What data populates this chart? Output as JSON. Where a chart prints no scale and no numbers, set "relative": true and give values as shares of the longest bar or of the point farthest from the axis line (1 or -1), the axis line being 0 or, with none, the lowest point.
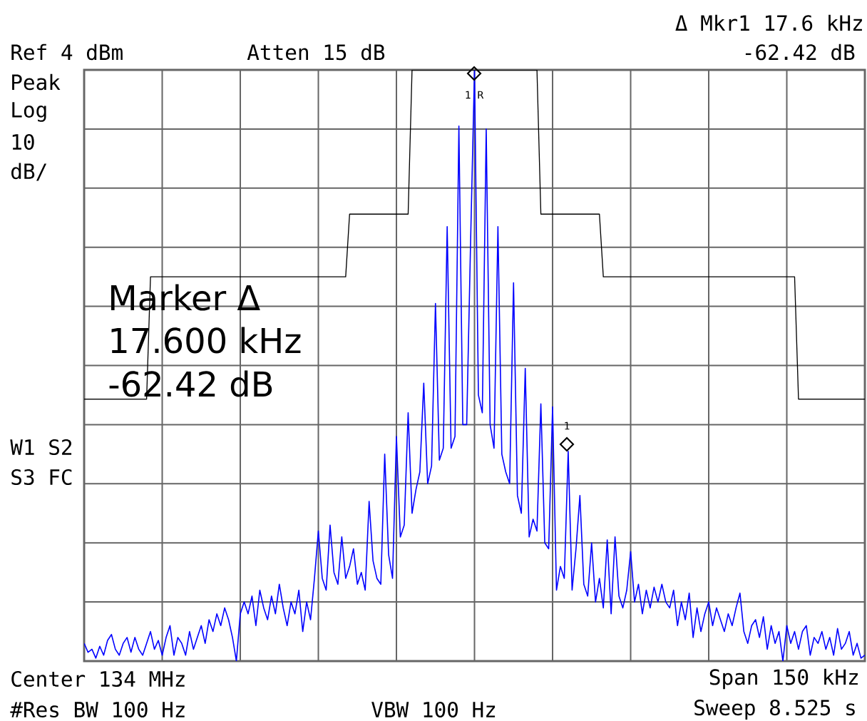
{
  "chart_data": {
    "type": "line",
    "relative": true,
    "grid": true,
    "categories": [
      null,
      null,
      null,
      null,
      null,
      null,
      null,
      null,
      null,
      null,
      null,
      null,
      null,
      null,
      null,
      null,
      null,
      null,
      null,
      null,
      null,
      null,
      null,
      null,
      null,
      null,
      null,
      null,
      null,
      null,
      null,
      null,
      null,
      null,
      null,
      null,
      null,
      null,
      null,
      null,
      null,
      null,
      null,
      null,
      null,
      null,
      null,
      null,
      null,
      null,
      null,
      null,
      null,
      null,
      null,
      null,
      null,
      null,
      null,
      null,
      null,
      null,
      null,
      null,
      null,
      null,
      null,
      null,
      null,
      null,
      null,
      null,
      null,
      null,
      null,
      null,
      null,
      null,
      null,
      null,
      null,
      null,
      null,
      null,
      null,
      null,
      null,
      null,
      null,
      null,
      null,
      null,
      null,
      null,
      null,
      null,
      null,
      null,
      null,
      null,
      null,
      null,
      null,
      null,
      null,
      null,
      null,
      null,
      null,
      null,
      null,
      null,
      null,
      null,
      null,
      null,
      null,
      null,
      null,
      null,
      null,
      null,
      null,
      null,
      null,
      null,
      null,
      null,
      null,
      null,
      null,
      null,
      null,
      null,
      null,
      null,
      null,
      null,
      null,
      null,
      null,
      null,
      null,
      null,
      null,
      null,
      null,
      null,
      null,
      null,
      null,
      null,
      null,
      null,
      null,
      null,
      null,
      null,
      null,
      null,
      null,
      null,
      null,
      null,
      null,
      null,
      null,
      null,
      null,
      null,
      null,
      null,
      null,
      null,
      null,
      null,
      null,
      null,
      null,
      null,
      null,
      null,
      null,
      null,
      null,
      null,
      null,
      null,
      null,
      null,
      null,
      null,
      null,
      null,
      null,
      null,
      null,
      null,
      null,
      null,
      null
    ],
    "series": [
      {
        "color": "#0000ff",
        "values": [
          0.03,
          0.015,
          0.02,
          0.005,
          0.025,
          0.01,
          0.035,
          0.045,
          0.02,
          0.01,
          0.03,
          0.04,
          0.015,
          0.04,
          0.02,
          0.01,
          0.03,
          0.05,
          0.02,
          0.035,
          0.01,
          0.04,
          0.06,
          0.01,
          0.04,
          0.03,
          0.01,
          0.05,
          0.02,
          0.04,
          0.06,
          0.03,
          0.07,
          0.05,
          0.08,
          0.06,
          0.09,
          0.07,
          0.04,
          0.0,
          0.08,
          0.1,
          0.08,
          0.11,
          0.06,
          0.12,
          0.09,
          0.07,
          0.11,
          0.08,
          0.13,
          0.09,
          0.06,
          0.1,
          0.08,
          0.12,
          0.05,
          0.1,
          0.07,
          0.14,
          0.22,
          0.14,
          0.12,
          0.23,
          0.15,
          0.13,
          0.21,
          0.14,
          0.16,
          0.19,
          0.13,
          0.15,
          0.12,
          0.27,
          0.17,
          0.14,
          0.13,
          0.35,
          0.18,
          0.14,
          0.38,
          0.21,
          0.23,
          0.42,
          0.25,
          0.29,
          0.32,
          0.47,
          0.3,
          0.33,
          0.605,
          0.34,
          0.36,
          0.735,
          0.36,
          0.38,
          0.905,
          0.4,
          0.4,
          0.71,
          1.0,
          0.45,
          0.42,
          0.9,
          0.4,
          0.36,
          0.735,
          0.35,
          0.32,
          0.3,
          0.64,
          0.28,
          0.25,
          0.495,
          0.21,
          0.24,
          0.22,
          0.435,
          0.2,
          0.19,
          0.43,
          0.12,
          0.16,
          0.14,
          0.355,
          0.12,
          0.19,
          0.28,
          0.13,
          0.11,
          0.2,
          0.1,
          0.14,
          0.09,
          0.205,
          0.08,
          0.21,
          0.11,
          0.09,
          0.12,
          0.185,
          0.1,
          0.13,
          0.08,
          0.12,
          0.09,
          0.125,
          0.1,
          0.13,
          0.1,
          0.09,
          0.12,
          0.06,
          0.1,
          0.07,
          0.115,
          0.04,
          0.09,
          0.05,
          0.08,
          0.1,
          0.06,
          0.09,
          0.07,
          0.05,
          0.08,
          0.06,
          0.09,
          0.115,
          0.05,
          0.03,
          0.06,
          0.07,
          0.04,
          0.075,
          0.02,
          0.06,
          0.03,
          0.05,
          0.0,
          0.06,
          0.03,
          0.05,
          0.02,
          0.05,
          0.06,
          0.01,
          0.04,
          0.03,
          0.05,
          0.02,
          0.04,
          0.01,
          0.055,
          0.02,
          0.03,
          0.05,
          0.01,
          0.03,
          0.005,
          0.01
        ]
      },
      {
        "color": "#000000",
        "values": [
          0.443,
          0.443,
          0.443,
          0.443,
          0.443,
          0.443,
          0.443,
          0.443,
          0.443,
          0.443,
          0.443,
          0.443,
          0.443,
          0.443,
          0.443,
          0.443,
          0.443,
          0.65,
          0.65,
          0.65,
          0.65,
          0.65,
          0.65,
          0.65,
          0.65,
          0.65,
          0.65,
          0.65,
          0.65,
          0.65,
          0.65,
          0.65,
          0.65,
          0.65,
          0.65,
          0.65,
          0.65,
          0.65,
          0.65,
          0.65,
          0.65,
          0.65,
          0.65,
          0.65,
          0.65,
          0.65,
          0.65,
          0.65,
          0.65,
          0.65,
          0.65,
          0.65,
          0.65,
          0.65,
          0.65,
          0.65,
          0.65,
          0.65,
          0.65,
          0.65,
          0.65,
          0.65,
          0.65,
          0.65,
          0.65,
          0.65,
          0.65,
          0.65,
          0.756,
          0.756,
          0.756,
          0.756,
          0.756,
          0.756,
          0.756,
          0.756,
          0.756,
          0.756,
          0.756,
          0.756,
          0.756,
          0.756,
          0.756,
          0.756,
          1.0,
          1.0,
          1.0,
          1.0,
          1.0,
          1.0,
          1.0,
          1.0,
          1.0,
          1.0,
          1.0,
          1.0,
          1.0,
          1.0,
          1.0,
          1.0,
          1.0,
          1.0,
          1.0,
          1.0,
          1.0,
          1.0,
          1.0,
          1.0,
          1.0,
          1.0,
          1.0,
          1.0,
          1.0,
          1.0,
          1.0,
          1.0,
          1.0,
          0.756,
          0.756,
          0.756,
          0.756,
          0.756,
          0.756,
          0.756,
          0.756,
          0.756,
          0.756,
          0.756,
          0.756,
          0.756,
          0.756,
          0.756,
          0.756,
          0.65,
          0.65,
          0.65,
          0.65,
          0.65,
          0.65,
          0.65,
          0.65,
          0.65,
          0.65,
          0.65,
          0.65,
          0.65,
          0.65,
          0.65,
          0.65,
          0.65,
          0.65,
          0.65,
          0.65,
          0.65,
          0.65,
          0.65,
          0.65,
          0.65,
          0.65,
          0.65,
          0.65,
          0.65,
          0.65,
          0.65,
          0.65,
          0.65,
          0.65,
          0.65,
          0.65,
          0.65,
          0.65,
          0.65,
          0.65,
          0.65,
          0.65,
          0.65,
          0.65,
          0.65,
          0.65,
          0.65,
          0.65,
          0.65,
          0.65,
          0.443,
          0.443,
          0.443,
          0.443,
          0.443,
          0.443,
          0.443,
          0.443,
          0.443,
          0.443,
          0.443,
          0.443,
          0.443,
          0.443,
          0.443,
          0.443,
          0.443,
          0.443
        ]
      }
    ],
    "annotations": [
      "Ref 4 dBm",
      "Atten 15 dB",
      "Δ Mkr1 17.6 kHz",
      "-62.42 dB",
      "Peak",
      "Log",
      "10",
      "dB/",
      "W1 S2",
      "S3 FC",
      "Center 134 MHz",
      "Span 150 kHz",
      "#Res BW 100 Hz",
      "VBW 100 Hz",
      "Sweep 8.525 s",
      "Marker Δ",
      "17.600 kHz",
      "-62.42 dB",
      "1 R",
      "1"
    ]
  }
}
